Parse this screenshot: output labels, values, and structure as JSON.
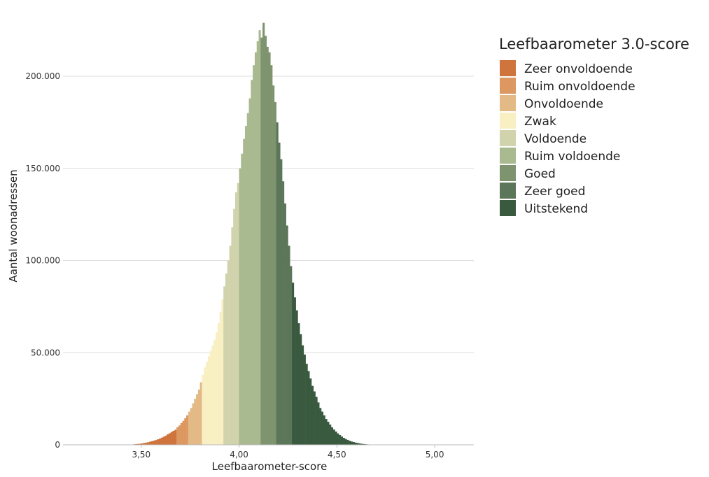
{
  "chart_data": {
    "type": "bar",
    "xlabel": "Leefbaarometer-score",
    "ylabel": "Aantal woonadressen",
    "xlim": [
      3.1,
      5.2
    ],
    "ylim": [
      0,
      230000
    ],
    "x_ticks": [
      3.5,
      4.0,
      4.5,
      5.0
    ],
    "x_tick_labels": [
      "3,50",
      "4,00",
      "4,50",
      "5,00"
    ],
    "y_ticks": [
      0,
      50000,
      100000,
      150000,
      200000
    ],
    "y_tick_labels": [
      "0",
      "50.000",
      "100.000",
      "150.000",
      "200.000"
    ],
    "grid": "horizontal",
    "legend": {
      "title": "Leefbaarometer 3.0-score",
      "position": "right",
      "entries": [
        {
          "label": "Zeer onvoldoende",
          "color": "#cf743d",
          "range": [
            3.45,
            3.68
          ]
        },
        {
          "label": "Ruim onvoldoende",
          "color": "#dc9860",
          "range": [
            3.68,
            3.74
          ]
        },
        {
          "label": "Onvoldoende",
          "color": "#e3b986",
          "range": [
            3.74,
            3.81
          ]
        },
        {
          "label": "Zwak",
          "color": "#f8f0c3",
          "range": [
            3.81,
            3.92
          ]
        },
        {
          "label": "Voldoende",
          "color": "#d0d3ab",
          "range": [
            3.92,
            4.0
          ]
        },
        {
          "label": "Ruim voldoende",
          "color": "#a9b990",
          "range": [
            4.0,
            4.11
          ]
        },
        {
          "label": "Goed",
          "color": "#7e946f",
          "range": [
            4.11,
            4.19
          ]
        },
        {
          "label": "Zeer goed",
          "color": "#5c7659",
          "range": [
            4.19,
            4.27
          ]
        },
        {
          "label": "Uitstekend",
          "color": "#3a5a40",
          "range": [
            4.27,
            4.72
          ]
        }
      ]
    },
    "bin_width": 0.01,
    "bins": [
      {
        "x": 3.45,
        "y": 200
      },
      {
        "x": 3.46,
        "y": 300
      },
      {
        "x": 3.47,
        "y": 400
      },
      {
        "x": 3.48,
        "y": 500
      },
      {
        "x": 3.49,
        "y": 600
      },
      {
        "x": 3.5,
        "y": 800
      },
      {
        "x": 3.51,
        "y": 1000
      },
      {
        "x": 3.52,
        "y": 1200
      },
      {
        "x": 3.53,
        "y": 1400
      },
      {
        "x": 3.54,
        "y": 1700
      },
      {
        "x": 3.55,
        "y": 2000
      },
      {
        "x": 3.56,
        "y": 2300
      },
      {
        "x": 3.57,
        "y": 2600
      },
      {
        "x": 3.58,
        "y": 3000
      },
      {
        "x": 3.59,
        "y": 3400
      },
      {
        "x": 3.6,
        "y": 3900
      },
      {
        "x": 3.61,
        "y": 4400
      },
      {
        "x": 3.62,
        "y": 5000
      },
      {
        "x": 3.63,
        "y": 5700
      },
      {
        "x": 3.64,
        "y": 6300
      },
      {
        "x": 3.65,
        "y": 7000
      },
      {
        "x": 3.66,
        "y": 7600
      },
      {
        "x": 3.67,
        "y": 8200
      },
      {
        "x": 3.68,
        "y": 9500
      },
      {
        "x": 3.69,
        "y": 10500
      },
      {
        "x": 3.7,
        "y": 11800
      },
      {
        "x": 3.71,
        "y": 13000
      },
      {
        "x": 3.72,
        "y": 14500
      },
      {
        "x": 3.73,
        "y": 16000
      },
      {
        "x": 3.74,
        "y": 18000
      },
      {
        "x": 3.75,
        "y": 20000
      },
      {
        "x": 3.76,
        "y": 22500
      },
      {
        "x": 3.77,
        "y": 25000
      },
      {
        "x": 3.78,
        "y": 27500
      },
      {
        "x": 3.79,
        "y": 30000
      },
      {
        "x": 3.8,
        "y": 34000
      },
      {
        "x": 3.81,
        "y": 38000
      },
      {
        "x": 3.82,
        "y": 42000
      },
      {
        "x": 3.83,
        "y": 45000
      },
      {
        "x": 3.84,
        "y": 48000
      },
      {
        "x": 3.85,
        "y": 51000
      },
      {
        "x": 3.86,
        "y": 54000
      },
      {
        "x": 3.87,
        "y": 57000
      },
      {
        "x": 3.88,
        "y": 61000
      },
      {
        "x": 3.89,
        "y": 66000
      },
      {
        "x": 3.9,
        "y": 72000
      },
      {
        "x": 3.91,
        "y": 79000
      },
      {
        "x": 3.92,
        "y": 86000
      },
      {
        "x": 3.93,
        "y": 93000
      },
      {
        "x": 3.94,
        "y": 100000
      },
      {
        "x": 3.95,
        "y": 108000
      },
      {
        "x": 3.96,
        "y": 118000
      },
      {
        "x": 3.97,
        "y": 128000
      },
      {
        "x": 3.98,
        "y": 137000
      },
      {
        "x": 3.99,
        "y": 142000
      },
      {
        "x": 4.0,
        "y": 150000
      },
      {
        "x": 4.01,
        "y": 158000
      },
      {
        "x": 4.02,
        "y": 166000
      },
      {
        "x": 4.03,
        "y": 173000
      },
      {
        "x": 4.04,
        "y": 180000
      },
      {
        "x": 4.05,
        "y": 188000
      },
      {
        "x": 4.06,
        "y": 198000
      },
      {
        "x": 4.07,
        "y": 206000
      },
      {
        "x": 4.08,
        "y": 213000
      },
      {
        "x": 4.09,
        "y": 219000
      },
      {
        "x": 4.1,
        "y": 225000
      },
      {
        "x": 4.11,
        "y": 221000
      },
      {
        "x": 4.12,
        "y": 229000
      },
      {
        "x": 4.13,
        "y": 222000
      },
      {
        "x": 4.14,
        "y": 216000
      },
      {
        "x": 4.15,
        "y": 213000
      },
      {
        "x": 4.16,
        "y": 206000
      },
      {
        "x": 4.17,
        "y": 195000
      },
      {
        "x": 4.18,
        "y": 186000
      },
      {
        "x": 4.19,
        "y": 175000
      },
      {
        "x": 4.2,
        "y": 164000
      },
      {
        "x": 4.21,
        "y": 155000
      },
      {
        "x": 4.22,
        "y": 143000
      },
      {
        "x": 4.23,
        "y": 131000
      },
      {
        "x": 4.24,
        "y": 119000
      },
      {
        "x": 4.25,
        "y": 108000
      },
      {
        "x": 4.26,
        "y": 97000
      },
      {
        "x": 4.27,
        "y": 88000
      },
      {
        "x": 4.28,
        "y": 80000
      },
      {
        "x": 4.29,
        "y": 73000
      },
      {
        "x": 4.3,
        "y": 66000
      },
      {
        "x": 4.31,
        "y": 60000
      },
      {
        "x": 4.32,
        "y": 54000
      },
      {
        "x": 4.33,
        "y": 49000
      },
      {
        "x": 4.34,
        "y": 44000
      },
      {
        "x": 4.35,
        "y": 40000
      },
      {
        "x": 4.36,
        "y": 36000
      },
      {
        "x": 4.37,
        "y": 32000
      },
      {
        "x": 4.38,
        "y": 29000
      },
      {
        "x": 4.39,
        "y": 26000
      },
      {
        "x": 4.4,
        "y": 23000
      },
      {
        "x": 4.41,
        "y": 20000
      },
      {
        "x": 4.42,
        "y": 18000
      },
      {
        "x": 4.43,
        "y": 16000
      },
      {
        "x": 4.44,
        "y": 14000
      },
      {
        "x": 4.45,
        "y": 12500
      },
      {
        "x": 4.46,
        "y": 11000
      },
      {
        "x": 4.47,
        "y": 9500
      },
      {
        "x": 4.48,
        "y": 8300
      },
      {
        "x": 4.49,
        "y": 7200
      },
      {
        "x": 4.5,
        "y": 6200
      },
      {
        "x": 4.51,
        "y": 5300
      },
      {
        "x": 4.52,
        "y": 4500
      },
      {
        "x": 4.53,
        "y": 3800
      },
      {
        "x": 4.54,
        "y": 3200
      },
      {
        "x": 4.55,
        "y": 2700
      },
      {
        "x": 4.56,
        "y": 2200
      },
      {
        "x": 4.57,
        "y": 1800
      },
      {
        "x": 4.58,
        "y": 1500
      },
      {
        "x": 4.59,
        "y": 1200
      },
      {
        "x": 4.6,
        "y": 1000
      },
      {
        "x": 4.61,
        "y": 800
      },
      {
        "x": 4.62,
        "y": 600
      },
      {
        "x": 4.63,
        "y": 450
      },
      {
        "x": 4.64,
        "y": 350
      },
      {
        "x": 4.65,
        "y": 250
      },
      {
        "x": 4.66,
        "y": 200
      },
      {
        "x": 4.67,
        "y": 150
      },
      {
        "x": 4.68,
        "y": 100
      },
      {
        "x": 4.69,
        "y": 80
      },
      {
        "x": 4.7,
        "y": 60
      },
      {
        "x": 4.71,
        "y": 40
      }
    ]
  }
}
